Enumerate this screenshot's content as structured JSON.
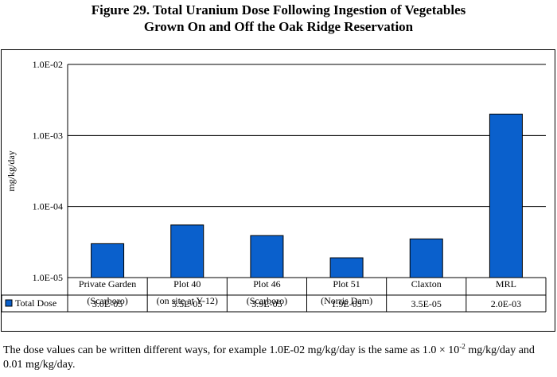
{
  "title_line1": "Figure 29. Total Uranium Dose Following Ingestion of Vegetables",
  "title_line2": "Grown On and Off the Oak Ridge Reservation",
  "note": {
    "part1": "The dose values can be written different ways, for example 1.0E-02 mg/kg/day is the same as 1.0 × 10",
    "exponent": "-2",
    "part2": "mg/kg/day and 0.01 mg/kg/day."
  },
  "chart_data": {
    "type": "bar",
    "title": "Figure 29. Total Uranium Dose Following Ingestion of Vegetables Grown On and Off the Oak Ridge Reservation",
    "ylabel": "mg/kg/day",
    "yscale": "log",
    "ylim": [
      1e-05,
      0.01
    ],
    "yticks": [
      "1.0E-05",
      "1.0E-04",
      "1.0E-03",
      "1.0E-02"
    ],
    "grid": true,
    "legend": "data table",
    "bar_color": "#0a60cc",
    "categories": [
      [
        "Private Garden",
        "(Scarboro)"
      ],
      [
        "Plot 40",
        "(on site at Y-12)"
      ],
      [
        "Plot 46",
        "(Scarboro)"
      ],
      [
        "Plot 51",
        "(Norris Dam)"
      ],
      [
        "Claxton"
      ],
      [
        "MRL"
      ]
    ],
    "series": [
      {
        "name": "Total Dose",
        "values": [
          3e-05,
          5.5e-05,
          3.9e-05,
          1.9e-05,
          3.5e-05,
          0.002
        ],
        "labels": [
          "3.0E-05",
          "5.5E-05",
          "3.9E-05",
          "1.9E-05",
          "3.5E-05",
          "2.0E-03"
        ]
      }
    ]
  }
}
